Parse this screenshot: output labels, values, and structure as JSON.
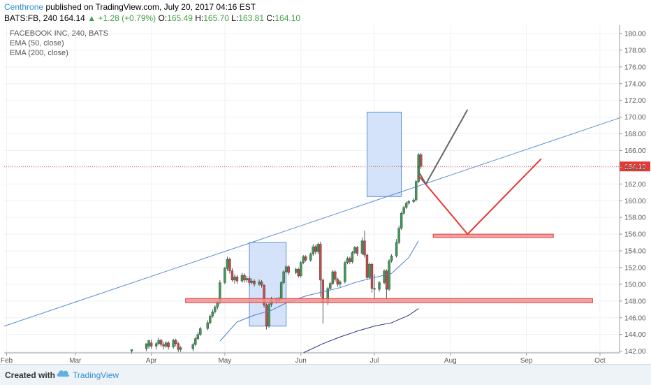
{
  "header": {
    "author": "Centhrone",
    "published_text": "published on TradingView.com, July 20, 2017 04:16 EST",
    "symbol": "BATS:FB, 240",
    "last": "164.14",
    "change": "+1.28 (+0.79%)",
    "o_label": "O:",
    "o_val": "165.49",
    "h_label": "H:",
    "h_val": "165.70",
    "l_label": "L:",
    "l_val": "163.81",
    "c_label": "C:",
    "c_val": "164.10"
  },
  "legend": {
    "title": "FACEBOOK INC, 240, BATS",
    "ema50": "EMA (50, close)",
    "ema200": "EMA (200, close)"
  },
  "footer": {
    "created_with": "Created with",
    "brand": "TradingView"
  },
  "colors": {
    "up": "#3c9a58",
    "down": "#c94a4a",
    "trendline": "#5b8fd6",
    "ema50": "#4f7fd0",
    "ema200": "#2a2f8a",
    "price_line": "#e05050",
    "support_fill": "#f28f8f",
    "box_fill": "#cfe0f8",
    "box_stroke": "#5b8fd6",
    "v_shape": "#e53935",
    "arrow_gray": "#666666",
    "price_tag": "#e53935"
  },
  "chart_data": {
    "type": "candlestick",
    "y_axis": {
      "range": [
        141.8,
        181
      ],
      "ticks": [
        "142.00",
        "144.00",
        "146.00",
        "148.00",
        "150.00",
        "152.00",
        "154.00",
        "156.00",
        "158.00",
        "160.00",
        "162.00",
        "164.00",
        "166.00",
        "168.00",
        "170.00",
        "172.00",
        "174.00",
        "176.00",
        "178.00",
        "180.00"
      ]
    },
    "x_axis": {
      "ticks": [
        "Feb",
        "Mar",
        "Apr",
        "May",
        "Jun",
        "Jul",
        "Aug",
        "Sep",
        "Oct"
      ],
      "range": [
        "2017-01-31",
        "2017-10-09"
      ]
    },
    "last_price": "164.10",
    "candles": [
      [
        "2017-03-24",
        142.0,
        142.2,
        141.7,
        142.1
      ],
      [
        "2017-03-30",
        142.3,
        142.9,
        142.0,
        142.6
      ],
      [
        "2017-03-31",
        142.6,
        143.3,
        142.3,
        143.0
      ],
      [
        "2017-04-01",
        143.0,
        142.6,
        142.3,
        143.4
      ],
      [
        "2017-04-03",
        142.6,
        142.9,
        142.2,
        143.1
      ],
      [
        "2017-04-04",
        142.9,
        143.3,
        142.7,
        143.6
      ],
      [
        "2017-04-05",
        143.3,
        142.8,
        142.5,
        143.5
      ],
      [
        "2017-04-06",
        142.8,
        142.6,
        142.2,
        143.1
      ],
      [
        "2017-04-07",
        142.6,
        143.0,
        142.4,
        143.2
      ],
      [
        "2017-04-08",
        143.0,
        142.5,
        142.2,
        143.2
      ],
      [
        "2017-04-10",
        142.5,
        143.3,
        142.3,
        143.5
      ],
      [
        "2017-04-11",
        143.3,
        142.9,
        142.6,
        143.5
      ],
      [
        "2017-04-12",
        142.9,
        142.2,
        141.9,
        143.1
      ],
      [
        "2017-04-13",
        142.2,
        142.4,
        141.9,
        142.6
      ],
      [
        "2017-04-18",
        142.3,
        142.8,
        142.0,
        143.0
      ],
      [
        "2017-04-19",
        142.8,
        143.5,
        142.6,
        143.7
      ],
      [
        "2017-04-20",
        143.5,
        144.0,
        143.3,
        144.3
      ],
      [
        "2017-04-21",
        144.0,
        144.7,
        143.8,
        144.9
      ],
      [
        "2017-04-24",
        144.7,
        145.4,
        144.5,
        145.7
      ],
      [
        "2017-04-25",
        145.4,
        146.2,
        145.2,
        146.4
      ],
      [
        "2017-04-26",
        146.2,
        146.7,
        146.0,
        147.0
      ],
      [
        "2017-04-27",
        146.7,
        147.3,
        146.5,
        147.5
      ],
      [
        "2017-04-28",
        147.3,
        147.8,
        147.0,
        148.0
      ],
      [
        "2017-04-29",
        147.8,
        150.2,
        147.6,
        150.5
      ],
      [
        "2017-05-01",
        150.2,
        151.9,
        150.0,
        152.1
      ],
      [
        "2017-05-02",
        151.9,
        153.0,
        151.6,
        153.3
      ],
      [
        "2017-05-03",
        153.0,
        151.6,
        151.3,
        153.2
      ],
      [
        "2017-05-04",
        151.6,
        150.5,
        150.3,
        151.9
      ],
      [
        "2017-05-05",
        150.5,
        150.9,
        150.1,
        151.2
      ],
      [
        "2017-05-06",
        150.9,
        150.4,
        150.1,
        151.1
      ],
      [
        "2017-05-08",
        150.4,
        151.1,
        150.2,
        151.4
      ],
      [
        "2017-05-09",
        151.1,
        150.5,
        150.2,
        151.3
      ],
      [
        "2017-05-10",
        150.5,
        150.7,
        150.2,
        151.0
      ],
      [
        "2017-05-11",
        150.7,
        150.2,
        149.8,
        151.0
      ],
      [
        "2017-05-12",
        150.2,
        150.4,
        150.0,
        150.7
      ],
      [
        "2017-05-13",
        150.4,
        150.0,
        149.7,
        150.6
      ],
      [
        "2017-05-15",
        150.0,
        150.3,
        149.8,
        150.6
      ],
      [
        "2017-05-16",
        150.3,
        149.9,
        149.6,
        150.5
      ],
      [
        "2017-05-17",
        149.9,
        147.5,
        147.2,
        150.0
      ],
      [
        "2017-05-18",
        147.5,
        145.0,
        144.6,
        147.7
      ],
      [
        "2017-05-19",
        145.0,
        147.6,
        144.8,
        147.8
      ],
      [
        "2017-05-20",
        147.6,
        148.2,
        147.3,
        148.5
      ],
      [
        "2017-05-22",
        148.2,
        148.0,
        147.7,
        148.4
      ],
      [
        "2017-05-23",
        148.0,
        148.3,
        147.8,
        148.5
      ],
      [
        "2017-05-24",
        148.3,
        150.2,
        148.1,
        150.4
      ],
      [
        "2017-05-25",
        150.2,
        151.5,
        150.0,
        151.7
      ],
      [
        "2017-05-26",
        151.5,
        152.1,
        151.3,
        152.3
      ],
      [
        "2017-05-27",
        152.1,
        151.4,
        151.1,
        152.3
      ],
      [
        "2017-05-30",
        151.4,
        151.8,
        151.2,
        152.0
      ],
      [
        "2017-05-31",
        151.8,
        151.0,
        150.8,
        152.0
      ],
      [
        "2017-06-01",
        151.0,
        152.6,
        150.8,
        152.8
      ],
      [
        "2017-06-02",
        152.6,
        153.3,
        152.4,
        153.5
      ],
      [
        "2017-06-03",
        153.3,
        152.9,
        152.7,
        153.5
      ],
      [
        "2017-06-05",
        152.9,
        153.6,
        152.7,
        153.8
      ],
      [
        "2017-06-06",
        153.6,
        154.5,
        153.4,
        154.8
      ],
      [
        "2017-06-07",
        154.5,
        153.9,
        153.6,
        154.7
      ],
      [
        "2017-06-08",
        153.9,
        154.8,
        153.6,
        155.0
      ],
      [
        "2017-06-09",
        154.8,
        150.5,
        148.5,
        155.1
      ],
      [
        "2017-06-10",
        150.5,
        147.8,
        145.3,
        150.7
      ],
      [
        "2017-06-12",
        147.8,
        149.5,
        147.5,
        149.7
      ],
      [
        "2017-06-13",
        149.5,
        150.1,
        149.3,
        150.3
      ],
      [
        "2017-06-14",
        150.1,
        151.5,
        149.9,
        151.7
      ],
      [
        "2017-06-15",
        151.5,
        150.6,
        150.3,
        151.7
      ],
      [
        "2017-06-16",
        150.6,
        150.0,
        149.7,
        150.8
      ],
      [
        "2017-06-17",
        150.0,
        150.3,
        149.7,
        150.5
      ],
      [
        "2017-06-19",
        150.3,
        152.6,
        150.1,
        152.8
      ],
      [
        "2017-06-20",
        152.6,
        153.1,
        152.4,
        153.3
      ],
      [
        "2017-06-21",
        153.1,
        152.7,
        152.4,
        153.3
      ],
      [
        "2017-06-22",
        152.7,
        153.8,
        152.5,
        154.0
      ],
      [
        "2017-06-23",
        153.8,
        154.4,
        153.6,
        154.6
      ],
      [
        "2017-06-24",
        154.4,
        153.7,
        153.4,
        154.6
      ],
      [
        "2017-06-26",
        153.7,
        155.2,
        153.5,
        155.6
      ],
      [
        "2017-06-27",
        155.2,
        153.5,
        153.2,
        156.4
      ],
      [
        "2017-06-28",
        153.5,
        150.8,
        150.5,
        153.7
      ],
      [
        "2017-06-29",
        150.8,
        152.4,
        150.6,
        152.6
      ],
      [
        "2017-06-30",
        152.4,
        149.5,
        149.0,
        152.6
      ],
      [
        "2017-07-01",
        149.5,
        149.4,
        148.3,
        151.2
      ],
      [
        "2017-07-03",
        149.4,
        150.2,
        149.1,
        150.4
      ],
      [
        "2017-07-05",
        150.2,
        151.6,
        150.0,
        151.8
      ],
      [
        "2017-07-06",
        151.6,
        149.4,
        148.2,
        151.8
      ],
      [
        "2017-07-07",
        149.4,
        152.8,
        149.2,
        153.0
      ],
      [
        "2017-07-08",
        152.8,
        153.4,
        152.6,
        153.6
      ],
      [
        "2017-07-10",
        153.4,
        155.0,
        153.2,
        155.4
      ],
      [
        "2017-07-11",
        155.0,
        156.7,
        154.8,
        157.0
      ],
      [
        "2017-07-12",
        156.7,
        158.5,
        156.5,
        158.7
      ],
      [
        "2017-07-13",
        158.5,
        159.2,
        158.3,
        159.4
      ],
      [
        "2017-07-14",
        159.2,
        159.7,
        159.0,
        159.9
      ],
      [
        "2017-07-15",
        159.7,
        159.9,
        159.5,
        160.1
      ],
      [
        "2017-07-17",
        159.9,
        160.1,
        159.7,
        160.3
      ],
      [
        "2017-07-18",
        160.1,
        162.3,
        159.9,
        162.5
      ],
      [
        "2017-07-19",
        162.3,
        164.1,
        162.1,
        164.3
      ],
      [
        "2017-07-19",
        164.1,
        165.5,
        163.9,
        165.7
      ],
      [
        "2017-07-20",
        165.5,
        164.1,
        163.8,
        165.7
      ]
    ],
    "ema50": [
      [
        "2017-04-29",
        143.2
      ],
      [
        "2017-05-06",
        145.5
      ],
      [
        "2017-05-13",
        146.3
      ],
      [
        "2017-05-20",
        146.9
      ],
      [
        "2017-05-27",
        147.9
      ],
      [
        "2017-06-03",
        148.6
      ],
      [
        "2017-06-10",
        149.1
      ],
      [
        "2017-06-17",
        149.6
      ],
      [
        "2017-06-24",
        150.3
      ],
      [
        "2017-07-01",
        150.8
      ],
      [
        "2017-07-08",
        151.3
      ],
      [
        "2017-07-15",
        153.2
      ],
      [
        "2017-07-19",
        155.2
      ]
    ],
    "ema200": [
      [
        "2017-06-02",
        141.8
      ],
      [
        "2017-06-10",
        142.9
      ],
      [
        "2017-06-17",
        143.7
      ],
      [
        "2017-06-24",
        144.4
      ],
      [
        "2017-07-01",
        145.0
      ],
      [
        "2017-07-08",
        145.4
      ],
      [
        "2017-07-15",
        146.3
      ],
      [
        "2017-07-19",
        147.1
      ]
    ],
    "trendline": [
      [
        "2017-01-31",
        145.0
      ],
      [
        "2017-10-09",
        169.9
      ]
    ],
    "supports": [
      {
        "x0": "2017-04-15",
        "x1": "2017-09-28",
        "y0": 147.8,
        "y1": 148.3
      },
      {
        "x0": "2017-07-25",
        "x1": "2017-09-12",
        "y0": 155.6,
        "y1": 156.0
      }
    ],
    "boxes": [
      {
        "x0": "2017-05-11",
        "x1": "2017-05-26",
        "y0": 145.0,
        "y1": 155.0
      },
      {
        "x0": "2017-06-28",
        "x1": "2017-07-12",
        "y0": 160.5,
        "y1": 170.6
      }
    ],
    "v_path": [
      [
        "2017-07-19",
        163.0
      ],
      [
        "2017-08-08",
        156.0
      ],
      [
        "2017-09-07",
        165.0
      ]
    ],
    "gray_path": [
      [
        "2017-07-19",
        163.5
      ],
      [
        "2017-07-22",
        162.0
      ],
      [
        "2017-08-08",
        170.9
      ]
    ]
  }
}
